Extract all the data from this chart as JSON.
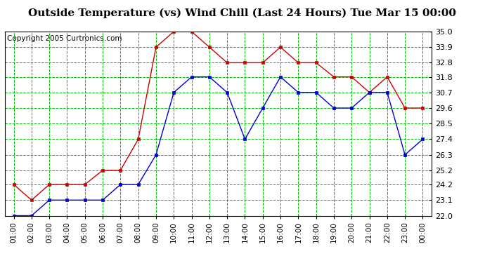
{
  "title": "Outside Temperature (vs) Wind Chill (Last 24 Hours) Tue Mar 15 00:00",
  "copyright": "Copyright 2005 Curtronics.com",
  "x_labels": [
    "01:00",
    "02:00",
    "03:00",
    "04:00",
    "05:00",
    "06:00",
    "07:00",
    "08:00",
    "09:00",
    "10:00",
    "11:00",
    "12:00",
    "13:00",
    "14:00",
    "15:00",
    "16:00",
    "17:00",
    "18:00",
    "19:00",
    "20:00",
    "21:00",
    "22:00",
    "23:00",
    "00:00"
  ],
  "y_ticks": [
    22.0,
    23.1,
    24.2,
    25.2,
    26.3,
    27.4,
    28.5,
    29.6,
    30.7,
    31.8,
    32.8,
    33.9,
    35.0
  ],
  "ylim": [
    22.0,
    35.0
  ],
  "red_line": [
    24.2,
    23.1,
    24.2,
    24.2,
    24.2,
    25.2,
    25.2,
    27.4,
    33.9,
    35.0,
    35.0,
    33.9,
    32.8,
    32.8,
    32.8,
    33.9,
    32.8,
    32.8,
    31.8,
    31.8,
    30.7,
    31.8,
    29.6,
    29.6
  ],
  "blue_line": [
    22.0,
    22.0,
    23.1,
    23.1,
    23.1,
    23.1,
    24.2,
    24.2,
    26.3,
    30.7,
    31.8,
    31.8,
    30.7,
    27.4,
    29.6,
    31.8,
    30.7,
    30.7,
    29.6,
    29.6,
    30.7,
    30.7,
    26.3,
    27.4
  ],
  "red_color": "#cc0000",
  "blue_color": "#0000cc",
  "green_color": "#00bb00",
  "bg_color": "#ffffff",
  "plot_bg_color": "#ffffff",
  "grid_color": "#00bb00",
  "title_fontsize": 11,
  "copyright_fontsize": 7.5
}
